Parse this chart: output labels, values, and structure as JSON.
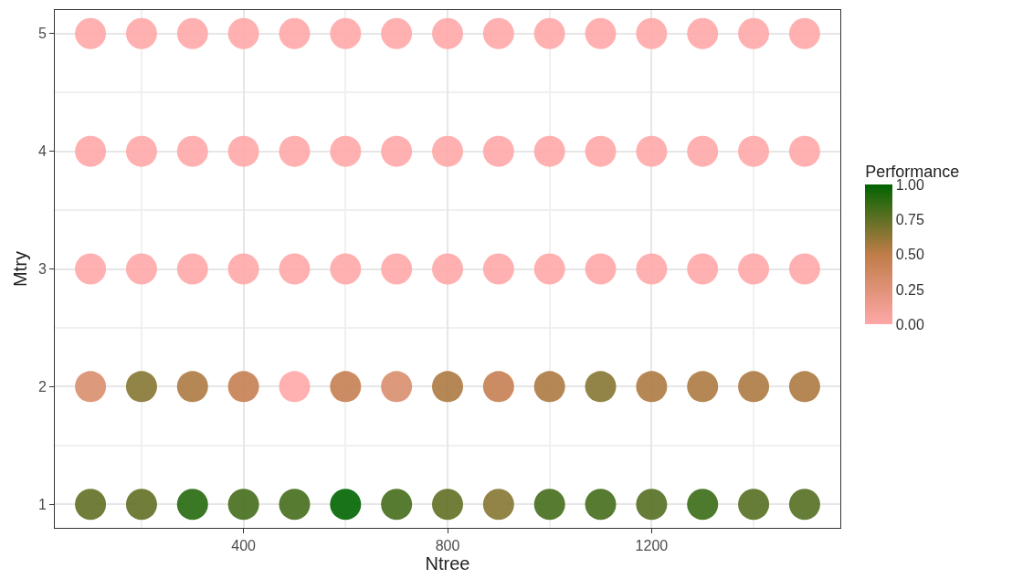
{
  "chart_data": {
    "type": "scatter",
    "xlabel": "Ntree",
    "ylabel": "Mtry",
    "clabel": "Performance",
    "x": [
      100,
      200,
      300,
      400,
      500,
      600,
      700,
      800,
      900,
      1000,
      1100,
      1200,
      1300,
      1400,
      1500,
      100,
      200,
      300,
      400,
      500,
      600,
      700,
      800,
      900,
      1000,
      1100,
      1200,
      1300,
      1400,
      1500,
      100,
      200,
      300,
      400,
      500,
      600,
      700,
      800,
      900,
      1000,
      1100,
      1200,
      1300,
      1400,
      1500,
      100,
      200,
      300,
      400,
      500,
      600,
      700,
      800,
      900,
      1000,
      1100,
      1200,
      1300,
      1400,
      1500,
      100,
      200,
      300,
      400,
      500,
      600,
      700,
      800,
      900,
      1000,
      1100,
      1200,
      1300,
      1400,
      1500
    ],
    "values": [
      1,
      1,
      1,
      1,
      1,
      1,
      1,
      1,
      1,
      1,
      1,
      1,
      1,
      1,
      1,
      2,
      2,
      2,
      2,
      2,
      2,
      2,
      2,
      2,
      2,
      2,
      2,
      2,
      2,
      2,
      3,
      3,
      3,
      3,
      3,
      3,
      3,
      3,
      3,
      3,
      3,
      3,
      3,
      3,
      3,
      4,
      4,
      4,
      4,
      4,
      4,
      4,
      4,
      4,
      4,
      4,
      4,
      4,
      4,
      4,
      5,
      5,
      5,
      5,
      5,
      5,
      5,
      5,
      5,
      5,
      5,
      5,
      5,
      5,
      5
    ],
    "cvalues": [
      0.75,
      0.75,
      0.9,
      0.82,
      0.82,
      1.0,
      0.82,
      0.75,
      0.65,
      0.82,
      0.82,
      0.78,
      0.85,
      0.78,
      0.78,
      0.3,
      0.65,
      0.55,
      0.45,
      0.0,
      0.45,
      0.3,
      0.55,
      0.45,
      0.55,
      0.65,
      0.55,
      0.55,
      0.55,
      0.55,
      0,
      0,
      0,
      0,
      0,
      0,
      0,
      0,
      0,
      0,
      0,
      0,
      0,
      0,
      0,
      0,
      0,
      0,
      0,
      0,
      0,
      0,
      0,
      0,
      0,
      0,
      0,
      0,
      0,
      0,
      0,
      0,
      0,
      0,
      0,
      0,
      0,
      0,
      0,
      0,
      0,
      0,
      0,
      0,
      0
    ],
    "clim": [
      0,
      1
    ],
    "cticks": [
      {
        "value": 0,
        "label": "0.00"
      },
      {
        "value": 0.25,
        "label": "0.25"
      },
      {
        "value": 0.5,
        "label": "0.50"
      },
      {
        "value": 0.75,
        "label": "0.75"
      },
      {
        "value": 1,
        "label": "1.00"
      }
    ],
    "xlim": [
      30,
      1570
    ],
    "xticks": [
      400,
      800,
      1200
    ],
    "ylim": [
      0.8,
      5.2
    ],
    "yticks": [
      1,
      2,
      3,
      4,
      5
    ],
    "grid": true,
    "marker": "circle",
    "legend": false
  }
}
